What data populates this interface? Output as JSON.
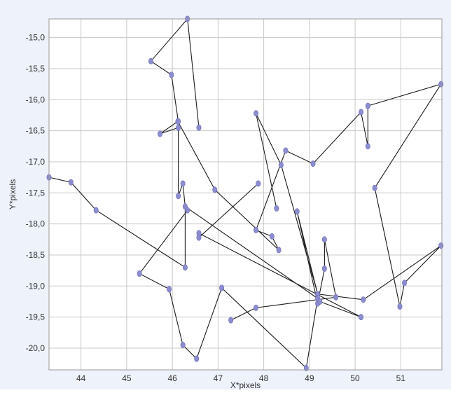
{
  "chart_data": {
    "type": "scatter",
    "connected": true,
    "title": "",
    "xlabel": "X*pixels",
    "ylabel": "Y*pixels",
    "xlim": [
      43.3,
      51.9
    ],
    "ylim": [
      -20.35,
      -14.7
    ],
    "x_ticks": [
      44,
      45,
      46,
      47,
      48,
      49,
      50,
      51
    ],
    "x_tick_labels": [
      "44",
      "45",
      "46",
      "47",
      "48",
      "49",
      "50",
      "51"
    ],
    "y_ticks": [
      -15.0,
      -15.5,
      -16.0,
      -16.5,
      -17.0,
      -17.5,
      -18.0,
      -18.5,
      -19.0,
      -19.5,
      -20.0
    ],
    "y_tick_labels": [
      "-15,0",
      "-15,5",
      "-16,0",
      "-16,5",
      "-17,0",
      "-17,5",
      "-18,0",
      "-18,5",
      "-19,0",
      "-19,5",
      "-20,0"
    ],
    "grid": true,
    "legend": "none",
    "colors": {
      "background": "#eef2fa",
      "plot_area": "#ffffff",
      "grid": "#c8c8c8",
      "line": "#1a1a1a",
      "marker": "#8c8cd0",
      "axis_text": "#333333"
    },
    "path_segments": [
      [
        {
          "x": 43.3,
          "y": -17.25
        },
        {
          "x": 43.78,
          "y": -17.33
        },
        {
          "x": 44.33,
          "y": -17.78
        },
        {
          "x": 46.28,
          "y": -18.7
        },
        {
          "x": 46.28,
          "y": -17.72
        },
        {
          "x": 46.23,
          "y": -17.35
        },
        {
          "x": 46.13,
          "y": -17.55
        },
        {
          "x": 46.13,
          "y": -16.45
        },
        {
          "x": 45.73,
          "y": -16.55
        },
        {
          "x": 46.12,
          "y": -16.35
        },
        {
          "x": 46.93,
          "y": -17.45
        },
        {
          "x": 48.33,
          "y": -18.42
        },
        {
          "x": 48.18,
          "y": -18.2
        },
        {
          "x": 47.83,
          "y": -18.1
        },
        {
          "x": 48.48,
          "y": -16.82
        },
        {
          "x": 49.08,
          "y": -17.03
        },
        {
          "x": 50.13,
          "y": -16.2
        },
        {
          "x": 50.28,
          "y": -16.75
        },
        {
          "x": 50.28,
          "y": -16.1
        },
        {
          "x": 51.88,
          "y": -15.75
        },
        {
          "x": 50.43,
          "y": -17.42
        },
        {
          "x": 50.98,
          "y": -19.33
        },
        {
          "x": 51.08,
          "y": -18.95
        },
        {
          "x": 51.88,
          "y": -18.35
        },
        {
          "x": 50.18,
          "y": -19.22
        },
        {
          "x": 49.18,
          "y": -19.13
        },
        {
          "x": 48.73,
          "y": -17.8
        },
        {
          "x": 49.18,
          "y": -19.28
        },
        {
          "x": 49.33,
          "y": -18.72
        },
        {
          "x": 49.33,
          "y": -18.25
        },
        {
          "x": 49.58,
          "y": -19.18
        },
        {
          "x": 47.83,
          "y": -19.35
        },
        {
          "x": 47.28,
          "y": -19.55
        }
      ],
      [
        {
          "x": 46.33,
          "y": -17.78
        },
        {
          "x": 45.28,
          "y": -18.8
        },
        {
          "x": 45.93,
          "y": -19.05
        },
        {
          "x": 46.23,
          "y": -19.95
        },
        {
          "x": 46.53,
          "y": -20.17
        },
        {
          "x": 47.08,
          "y": -19.03
        },
        {
          "x": 48.93,
          "y": -20.32
        },
        {
          "x": 49.18,
          "y": -19.2
        },
        {
          "x": 46.28,
          "y": -17.72
        }
      ],
      [
        {
          "x": 48.28,
          "y": -17.75
        },
        {
          "x": 47.83,
          "y": -16.22
        },
        {
          "x": 48.38,
          "y": -17.05
        },
        {
          "x": 49.23,
          "y": -19.25
        },
        {
          "x": 50.13,
          "y": -19.5
        },
        {
          "x": 46.58,
          "y": -18.15
        },
        {
          "x": 46.58,
          "y": -18.22
        },
        {
          "x": 47.88,
          "y": -17.35
        }
      ],
      [
        {
          "x": 45.53,
          "y": -15.38
        },
        {
          "x": 46.33,
          "y": -14.7
        },
        {
          "x": 46.58,
          "y": -16.45
        }
      ],
      [
        {
          "x": 45.53,
          "y": -15.38
        },
        {
          "x": 45.98,
          "y": -15.6
        },
        {
          "x": 46.13,
          "y": -16.35
        }
      ]
    ]
  }
}
